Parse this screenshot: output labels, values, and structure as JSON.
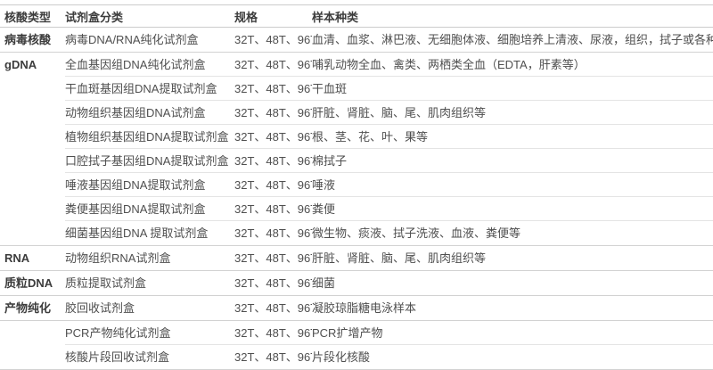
{
  "colors": {
    "header_text": "#3c3c3c",
    "body_text": "#4f4f4f",
    "divider_strong": "#d2d2d2",
    "divider_light": "#e4e4e4"
  },
  "table": {
    "columns": [
      {
        "key": "category",
        "label": "核酸类型"
      },
      {
        "key": "kit",
        "label": "试剂盒分类"
      },
      {
        "key": "spec",
        "label": "规格"
      },
      {
        "key": "samples",
        "label": "样本种类"
      }
    ],
    "rows": [
      {
        "category": "病毒核酸",
        "kit": "病毒DNA/RNA纯化试剂盒",
        "spec": "32T、48T、96T",
        "samples": "血清、血浆、淋巴液、无细胞体液、细胞培养上清液、尿液，组织，拭子或各种病毒保存液",
        "divider": "full"
      },
      {
        "category": "gDNA",
        "kit": "全血基因组DNA纯化试剂盒",
        "spec": "32T、48T、96T",
        "samples": "哺乳动物全血、禽类、两栖类全血（EDTA，肝素等）",
        "divider": "indent"
      },
      {
        "category": "",
        "kit": "干血斑基因组DNA提取试剂盒",
        "spec": "32T、48T、96T",
        "samples": "干血斑",
        "divider": "indent"
      },
      {
        "category": "",
        "kit": "动物组织基因组DNA试剂盒",
        "spec": "32T、48T、96T",
        "samples": "肝脏、肾脏、脑、尾、肌肉组织等",
        "divider": "indent"
      },
      {
        "category": "",
        "kit": "植物组织基因组DNA提取试剂盒",
        "spec": "32T、48T、96T",
        "samples": "根、茎、花、叶、果等",
        "divider": "indent"
      },
      {
        "category": "",
        "kit": "口腔拭子基因组DNA提取试剂盒",
        "spec": "32T、48T、96T",
        "samples": "棉拭子",
        "divider": "indent"
      },
      {
        "category": "",
        "kit": "唾液基因组DNA提取试剂盒",
        "spec": "32T、48T、96T",
        "samples": "唾液",
        "divider": "indent"
      },
      {
        "category": "",
        "kit": "粪便基因组DNA提取试剂盒",
        "spec": "32T、48T、96T",
        "samples": "粪便",
        "divider": "indent"
      },
      {
        "category": "",
        "kit": "细菌基因组DNA 提取试剂盒",
        "spec": "32T、48T、96T",
        "samples": "微生物、痰液、拭子洗液、血液、粪便等",
        "divider": "full"
      },
      {
        "category": "RNA",
        "kit": "动物组织RNA试剂盒",
        "spec": "32T、48T、96T",
        "samples": "肝脏、肾脏、脑、尾、肌肉组织等",
        "divider": "full"
      },
      {
        "category": "质粒DNA",
        "kit": "质粒提取试剂盒",
        "spec": "32T、48T、96T",
        "samples": "细菌",
        "divider": "full"
      },
      {
        "category": "产物纯化",
        "kit": "胶回收试剂盒",
        "spec": "32T、48T、96T",
        "samples": "凝胶琼脂糖电泳样本",
        "divider": "full"
      },
      {
        "category": "",
        "kit": "PCR产物纯化试剂盒",
        "spec": "32T、48T、96T",
        "samples": "PCR扩增产物",
        "divider": "indent"
      },
      {
        "category": "",
        "kit": "核酸片段回收试剂盒",
        "spec": "32T、48T、96T",
        "samples": "片段化核酸",
        "divider": "full"
      }
    ]
  }
}
